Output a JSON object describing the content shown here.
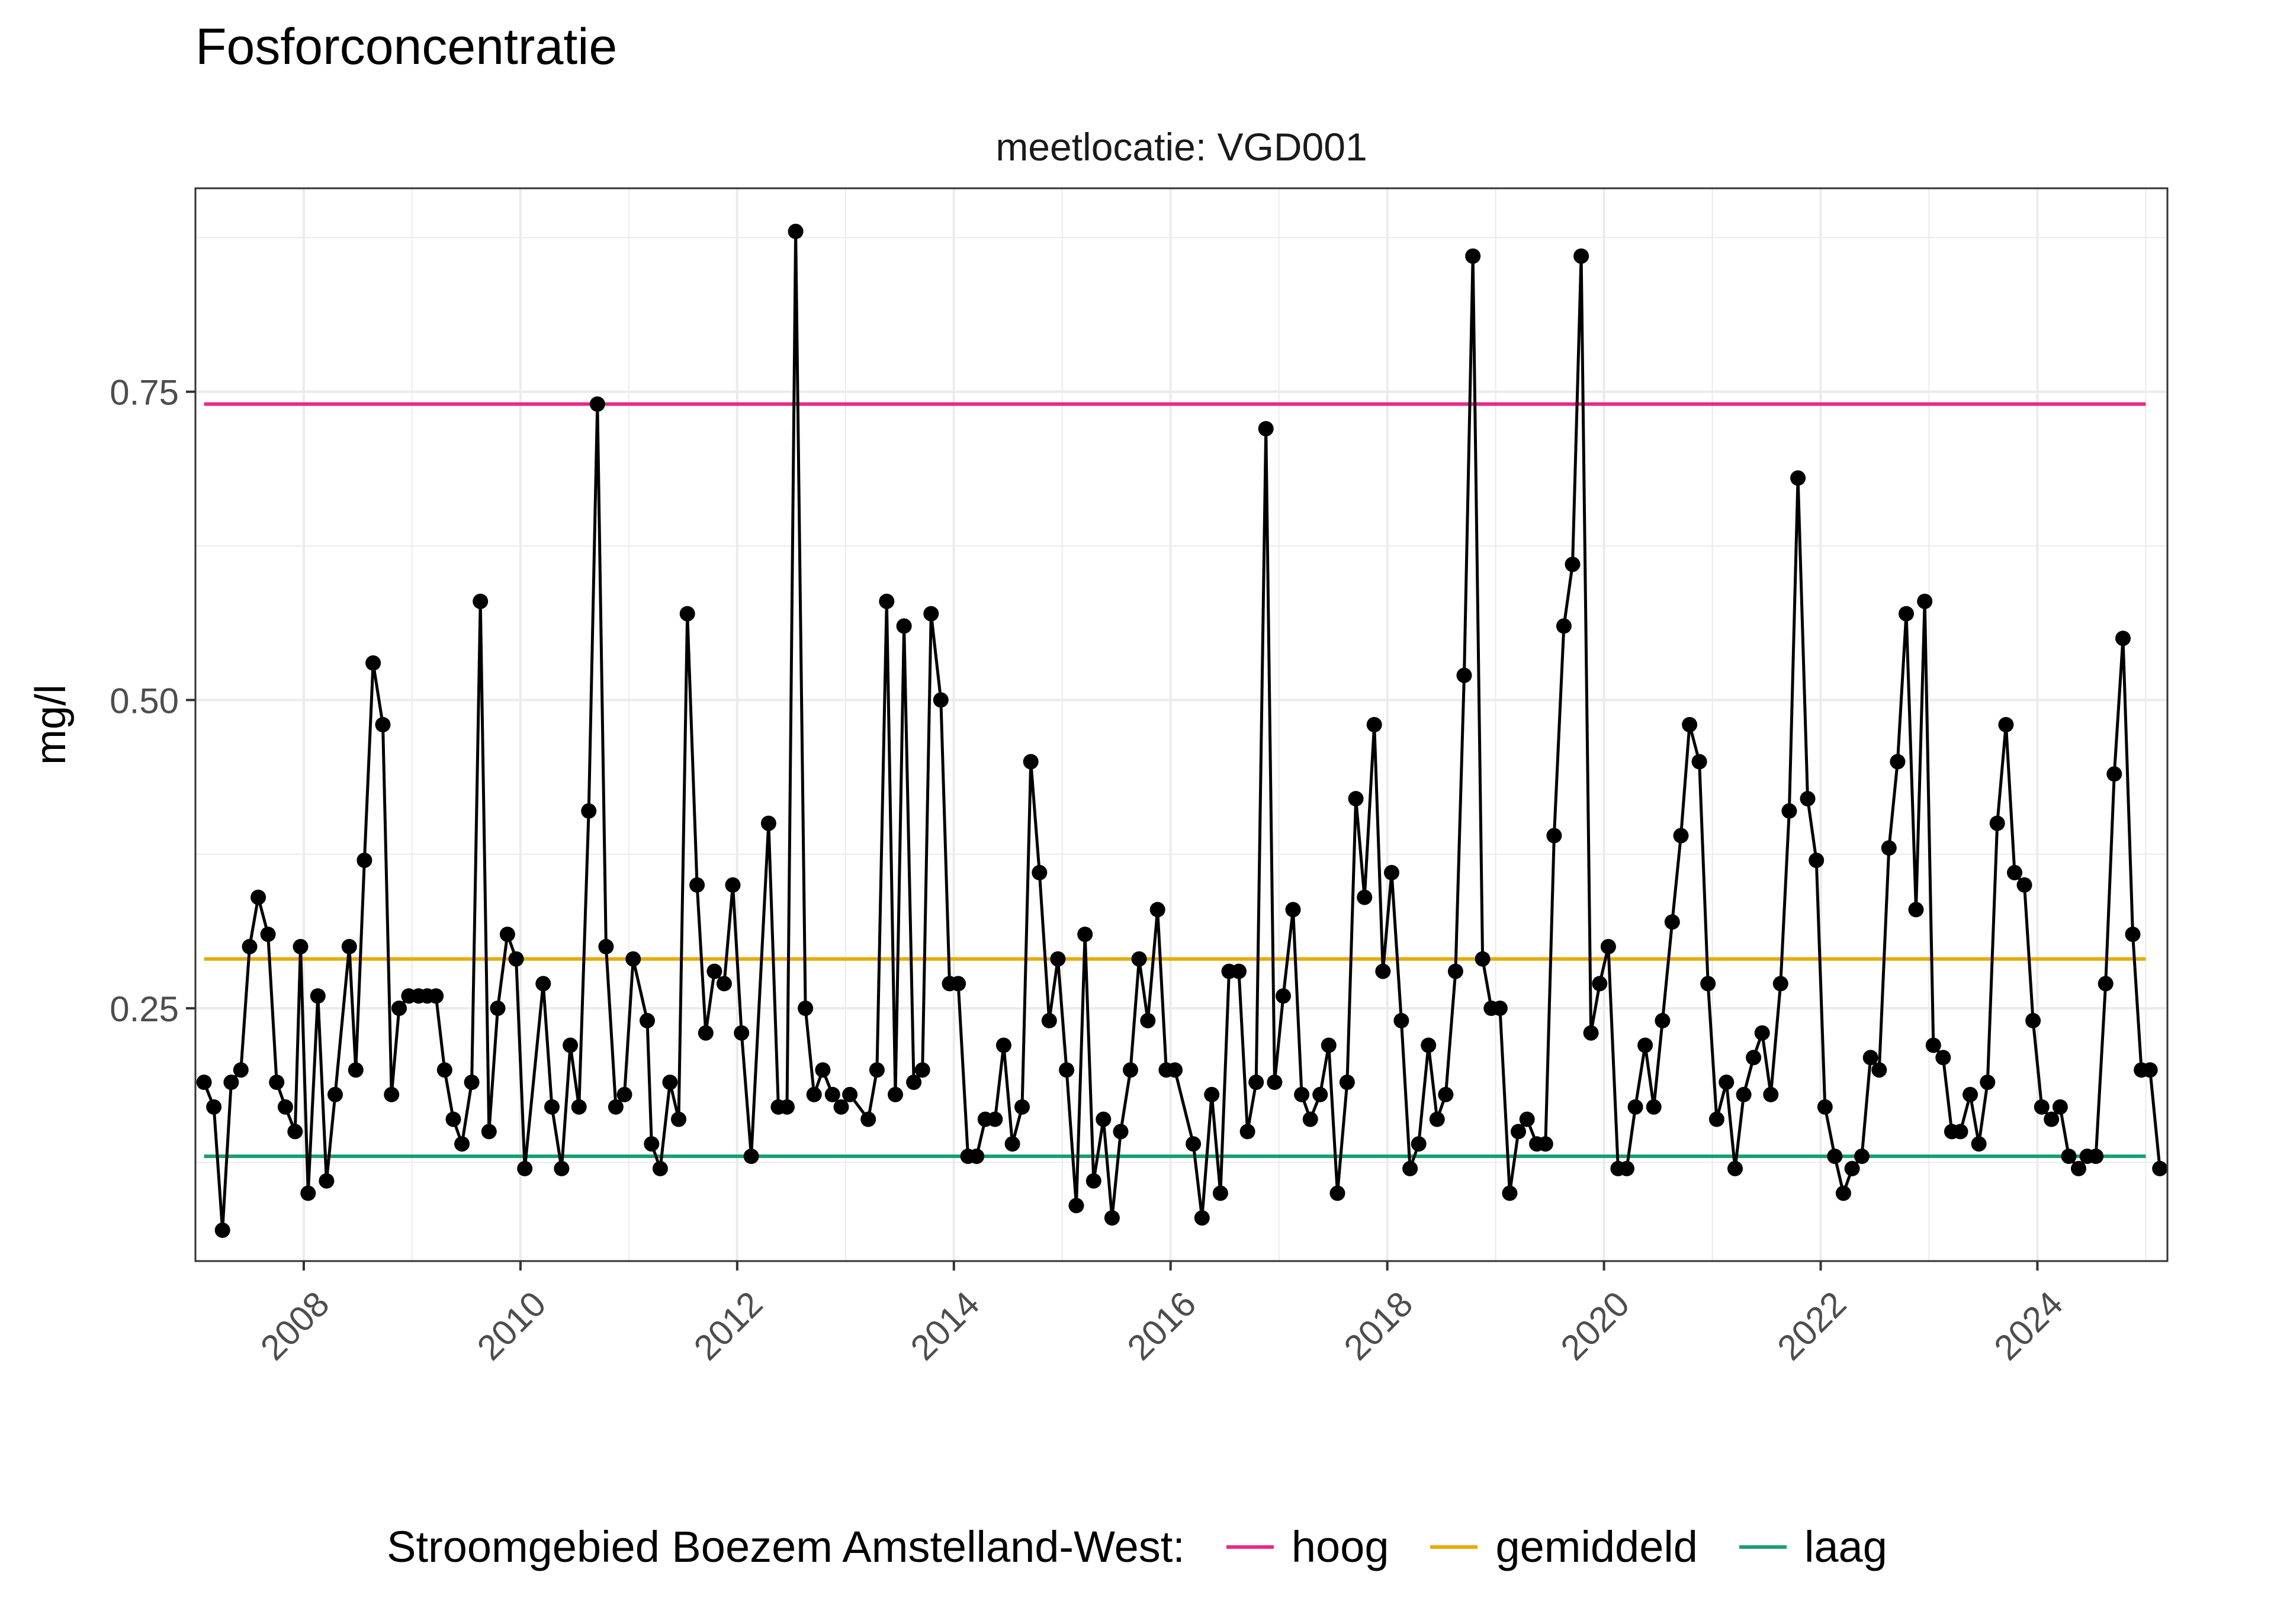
{
  "chart_data": {
    "type": "line",
    "title": "Fosforconcentratie",
    "facet_label": "meetlocatie: VGD001",
    "ylabel": "mg/l",
    "xlabel": "",
    "xlim": [
      2007.0,
      2025.2
    ],
    "ylim": [
      0.045,
      0.915
    ],
    "x_ticks": [
      2008,
      2010,
      2012,
      2014,
      2016,
      2018,
      2020,
      2022,
      2024
    ],
    "y_ticks": [
      0.25,
      0.5,
      0.75
    ],
    "y_tick_labels": [
      "0.25",
      "0.50",
      "0.75"
    ],
    "grid": true,
    "legend": {
      "title": "Stroomgebied Boezem Amstelland-West:",
      "position": "bottom",
      "items": [
        {
          "label": "hoog",
          "color": "#e7298a"
        },
        {
          "label": "gemiddeld",
          "color": "#e6ab02"
        },
        {
          "label": "laag",
          "color": "#1b9e77"
        }
      ]
    },
    "reference_lines": [
      {
        "name": "hoog",
        "value": 0.74,
        "color": "#e7298a",
        "x_from": 2007.08,
        "x_to": 2025.0
      },
      {
        "name": "gemiddeld",
        "value": 0.29,
        "color": "#e6ab02",
        "x_from": 2007.08,
        "x_to": 2025.0
      },
      {
        "name": "laag",
        "value": 0.13,
        "color": "#1b9e77",
        "x_from": 2007.08,
        "x_to": 2025.0
      }
    ],
    "series": [
      {
        "color": "#000000",
        "points": [
          [
            2007.08,
            0.19
          ],
          [
            2007.17,
            0.17
          ],
          [
            2007.25,
            0.07
          ],
          [
            2007.33,
            0.19
          ],
          [
            2007.42,
            0.2
          ],
          [
            2007.5,
            0.3
          ],
          [
            2007.58,
            0.34
          ],
          [
            2007.67,
            0.31
          ],
          [
            2007.75,
            0.19
          ],
          [
            2007.83,
            0.17
          ],
          [
            2007.92,
            0.15
          ],
          [
            2007.97,
            0.3
          ],
          [
            2008.04,
            0.1
          ],
          [
            2008.13,
            0.26
          ],
          [
            2008.21,
            0.11
          ],
          [
            2008.29,
            0.18
          ],
          [
            2008.42,
            0.3
          ],
          [
            2008.48,
            0.2
          ],
          [
            2008.56,
            0.37
          ],
          [
            2008.64,
            0.53
          ],
          [
            2008.73,
            0.48
          ],
          [
            2008.81,
            0.18
          ],
          [
            2008.88,
            0.25
          ],
          [
            2008.97,
            0.26
          ],
          [
            2009.06,
            0.26
          ],
          [
            2009.14,
            0.26
          ],
          [
            2009.22,
            0.26
          ],
          [
            2009.3,
            0.2
          ],
          [
            2009.38,
            0.16
          ],
          [
            2009.46,
            0.14
          ],
          [
            2009.55,
            0.19
          ],
          [
            2009.63,
            0.58
          ],
          [
            2009.71,
            0.15
          ],
          [
            2009.79,
            0.25
          ],
          [
            2009.88,
            0.31
          ],
          [
            2009.96,
            0.29
          ],
          [
            2010.04,
            0.12
          ],
          [
            2010.21,
            0.27
          ],
          [
            2010.29,
            0.17
          ],
          [
            2010.38,
            0.12
          ],
          [
            2010.46,
            0.22
          ],
          [
            2010.54,
            0.17
          ],
          [
            2010.63,
            0.41
          ],
          [
            2010.71,
            0.74
          ],
          [
            2010.79,
            0.3
          ],
          [
            2010.88,
            0.17
          ],
          [
            2010.96,
            0.18
          ],
          [
            2011.04,
            0.29
          ],
          [
            2011.17,
            0.24
          ],
          [
            2011.21,
            0.14
          ],
          [
            2011.29,
            0.12
          ],
          [
            2011.38,
            0.19
          ],
          [
            2011.46,
            0.16
          ],
          [
            2011.54,
            0.57
          ],
          [
            2011.63,
            0.35
          ],
          [
            2011.71,
            0.23
          ],
          [
            2011.79,
            0.28
          ],
          [
            2011.88,
            0.27
          ],
          [
            2011.96,
            0.35
          ],
          [
            2012.04,
            0.23
          ],
          [
            2012.13,
            0.13
          ],
          [
            2012.29,
            0.4
          ],
          [
            2012.38,
            0.17
          ],
          [
            2012.46,
            0.17
          ],
          [
            2012.54,
            0.88
          ],
          [
            2012.63,
            0.25
          ],
          [
            2012.71,
            0.18
          ],
          [
            2012.79,
            0.2
          ],
          [
            2012.88,
            0.18
          ],
          [
            2012.96,
            0.17
          ],
          [
            2013.04,
            0.18
          ],
          [
            2013.21,
            0.16
          ],
          [
            2013.29,
            0.2
          ],
          [
            2013.38,
            0.58
          ],
          [
            2013.46,
            0.18
          ],
          [
            2013.54,
            0.56
          ],
          [
            2013.63,
            0.19
          ],
          [
            2013.71,
            0.2
          ],
          [
            2013.79,
            0.57
          ],
          [
            2013.88,
            0.5
          ],
          [
            2013.96,
            0.27
          ],
          [
            2014.04,
            0.27
          ],
          [
            2014.13,
            0.13
          ],
          [
            2014.21,
            0.13
          ],
          [
            2014.29,
            0.16
          ],
          [
            2014.38,
            0.16
          ],
          [
            2014.46,
            0.22
          ],
          [
            2014.54,
            0.14
          ],
          [
            2014.63,
            0.17
          ],
          [
            2014.71,
            0.45
          ],
          [
            2014.79,
            0.36
          ],
          [
            2014.88,
            0.24
          ],
          [
            2014.96,
            0.29
          ],
          [
            2015.04,
            0.2
          ],
          [
            2015.13,
            0.09
          ],
          [
            2015.21,
            0.31
          ],
          [
            2015.29,
            0.11
          ],
          [
            2015.38,
            0.16
          ],
          [
            2015.46,
            0.08
          ],
          [
            2015.54,
            0.15
          ],
          [
            2015.63,
            0.2
          ],
          [
            2015.71,
            0.29
          ],
          [
            2015.79,
            0.24
          ],
          [
            2015.88,
            0.33
          ],
          [
            2015.96,
            0.2
          ],
          [
            2016.04,
            0.2
          ],
          [
            2016.21,
            0.14
          ],
          [
            2016.29,
            0.08
          ],
          [
            2016.38,
            0.18
          ],
          [
            2016.46,
            0.1
          ],
          [
            2016.54,
            0.28
          ],
          [
            2016.63,
            0.28
          ],
          [
            2016.71,
            0.15
          ],
          [
            2016.79,
            0.19
          ],
          [
            2016.88,
            0.72
          ],
          [
            2016.96,
            0.19
          ],
          [
            2017.04,
            0.26
          ],
          [
            2017.13,
            0.33
          ],
          [
            2017.21,
            0.18
          ],
          [
            2017.29,
            0.16
          ],
          [
            2017.38,
            0.18
          ],
          [
            2017.46,
            0.22
          ],
          [
            2017.54,
            0.1
          ],
          [
            2017.63,
            0.19
          ],
          [
            2017.71,
            0.42
          ],
          [
            2017.79,
            0.34
          ],
          [
            2017.88,
            0.48
          ],
          [
            2017.96,
            0.28
          ],
          [
            2018.04,
            0.36
          ],
          [
            2018.13,
            0.24
          ],
          [
            2018.21,
            0.12
          ],
          [
            2018.29,
            0.14
          ],
          [
            2018.38,
            0.22
          ],
          [
            2018.46,
            0.16
          ],
          [
            2018.54,
            0.18
          ],
          [
            2018.63,
            0.28
          ],
          [
            2018.71,
            0.52
          ],
          [
            2018.79,
            0.86
          ],
          [
            2018.88,
            0.29
          ],
          [
            2018.96,
            0.25
          ],
          [
            2019.04,
            0.25
          ],
          [
            2019.13,
            0.1
          ],
          [
            2019.21,
            0.15
          ],
          [
            2019.29,
            0.16
          ],
          [
            2019.38,
            0.14
          ],
          [
            2019.46,
            0.14
          ],
          [
            2019.54,
            0.39
          ],
          [
            2019.63,
            0.56
          ],
          [
            2019.71,
            0.61
          ],
          [
            2019.79,
            0.86
          ],
          [
            2019.88,
            0.23
          ],
          [
            2019.96,
            0.27
          ],
          [
            2020.04,
            0.3
          ],
          [
            2020.13,
            0.12
          ],
          [
            2020.21,
            0.12
          ],
          [
            2020.29,
            0.17
          ],
          [
            2020.38,
            0.22
          ],
          [
            2020.46,
            0.17
          ],
          [
            2020.54,
            0.24
          ],
          [
            2020.63,
            0.32
          ],
          [
            2020.71,
            0.39
          ],
          [
            2020.79,
            0.48
          ],
          [
            2020.88,
            0.45
          ],
          [
            2020.96,
            0.27
          ],
          [
            2021.04,
            0.16
          ],
          [
            2021.13,
            0.19
          ],
          [
            2021.21,
            0.12
          ],
          [
            2021.29,
            0.18
          ],
          [
            2021.38,
            0.21
          ],
          [
            2021.46,
            0.23
          ],
          [
            2021.54,
            0.18
          ],
          [
            2021.63,
            0.27
          ],
          [
            2021.71,
            0.41
          ],
          [
            2021.79,
            0.68
          ],
          [
            2021.88,
            0.42
          ],
          [
            2021.96,
            0.37
          ],
          [
            2022.04,
            0.17
          ],
          [
            2022.13,
            0.13
          ],
          [
            2022.21,
            0.1
          ],
          [
            2022.29,
            0.12
          ],
          [
            2022.38,
            0.13
          ],
          [
            2022.46,
            0.21
          ],
          [
            2022.54,
            0.2
          ],
          [
            2022.63,
            0.38
          ],
          [
            2022.71,
            0.45
          ],
          [
            2022.79,
            0.57
          ],
          [
            2022.88,
            0.33
          ],
          [
            2022.96,
            0.58
          ],
          [
            2023.04,
            0.22
          ],
          [
            2023.13,
            0.21
          ],
          [
            2023.21,
            0.15
          ],
          [
            2023.29,
            0.15
          ],
          [
            2023.38,
            0.18
          ],
          [
            2023.46,
            0.14
          ],
          [
            2023.54,
            0.19
          ],
          [
            2023.63,
            0.4
          ],
          [
            2023.71,
            0.48
          ],
          [
            2023.79,
            0.36
          ],
          [
            2023.88,
            0.35
          ],
          [
            2023.96,
            0.24
          ],
          [
            2024.04,
            0.17
          ],
          [
            2024.13,
            0.16
          ],
          [
            2024.21,
            0.17
          ],
          [
            2024.29,
            0.13
          ],
          [
            2024.38,
            0.12
          ],
          [
            2024.46,
            0.13
          ],
          [
            2024.54,
            0.13
          ],
          [
            2024.63,
            0.27
          ],
          [
            2024.71,
            0.44
          ],
          [
            2024.79,
            0.55
          ],
          [
            2024.88,
            0.31
          ],
          [
            2024.96,
            0.2
          ],
          [
            2025.04,
            0.2
          ],
          [
            2025.13,
            0.12
          ]
        ]
      }
    ]
  }
}
